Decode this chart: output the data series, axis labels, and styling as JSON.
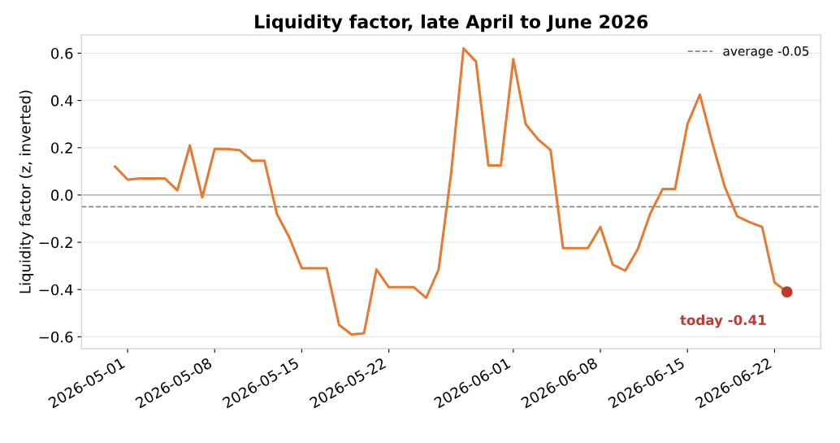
{
  "chart_data": {
    "type": "line",
    "title": "Liquidity factor, late April to June 2026",
    "ylabel": "Liquidity factor (z, inverted)",
    "x": [
      "2026-04-30",
      "2026-05-01",
      "2026-05-02",
      "2026-05-03",
      "2026-05-04",
      "2026-05-05",
      "2026-05-06",
      "2026-05-07",
      "2026-05-08",
      "2026-05-09",
      "2026-05-10",
      "2026-05-11",
      "2026-05-12",
      "2026-05-13",
      "2026-05-14",
      "2026-05-15",
      "2026-05-16",
      "2026-05-17",
      "2026-05-18",
      "2026-05-19",
      "2026-05-20",
      "2026-05-21",
      "2026-05-22",
      "2026-05-23",
      "2026-05-24",
      "2026-05-25",
      "2026-05-26",
      "2026-05-27",
      "2026-05-28",
      "2026-05-29",
      "2026-05-30",
      "2026-05-31",
      "2026-06-01",
      "2026-06-02",
      "2026-06-03",
      "2026-06-04",
      "2026-06-05",
      "2026-06-06",
      "2026-06-07",
      "2026-06-08",
      "2026-06-09",
      "2026-06-10",
      "2026-06-11",
      "2026-06-12",
      "2026-06-13",
      "2026-06-14",
      "2026-06-15",
      "2026-06-16",
      "2026-06-17",
      "2026-06-18",
      "2026-06-19",
      "2026-06-20",
      "2026-06-21",
      "2026-06-22",
      "2026-06-23"
    ],
    "series": [
      {
        "color": "#e87a30",
        "marker": "none",
        "values": [
          0.12,
          0.065,
          0.07,
          0.07,
          0.07,
          0.02,
          0.21,
          -0.01,
          0.195,
          0.195,
          0.19,
          0.145,
          0.145,
          -0.08,
          -0.18,
          -0.31,
          -0.31,
          -0.31,
          -0.55,
          -0.59,
          -0.585,
          -0.315,
          -0.39,
          -0.39,
          -0.39,
          -0.435,
          -0.315,
          0.09,
          0.62,
          0.565,
          0.125,
          0.125,
          0.575,
          0.3,
          0.235,
          0.19,
          -0.225,
          -0.225,
          -0.225,
          -0.135,
          -0.295,
          -0.32,
          -0.23,
          -0.08,
          0.025,
          0.025,
          0.3,
          0.425,
          0.22,
          0.035,
          -0.09,
          -0.115,
          -0.135,
          -0.37,
          -0.41
        ]
      },
      {
        "type": "scatter",
        "marker": "circle",
        "color": "#c0392b",
        "x": [
          "2026-06-23"
        ],
        "values": [
          -0.41
        ]
      }
    ],
    "xlim": [
      "2026-04-27T07:00",
      "2026-06-25T17:00"
    ],
    "xticks": [
      {
        "value": "2026-05-01",
        "label": "2026-05-01"
      },
      {
        "value": "2026-05-08",
        "label": "2026-05-08"
      },
      {
        "value": "2026-05-15",
        "label": "2026-05-15"
      },
      {
        "value": "2026-05-22",
        "label": "2026-05-22"
      },
      {
        "value": "2026-06-01",
        "label": "2026-06-01"
      },
      {
        "value": "2026-06-08",
        "label": "2026-06-08"
      },
      {
        "value": "2026-06-15",
        "label": "2026-06-15"
      },
      {
        "value": "2026-06-22",
        "label": "2026-06-22"
      }
    ],
    "ylim": [
      -0.65,
      0.677
    ],
    "yticks": [
      {
        "value": -0.6,
        "label": "−0.6"
      },
      {
        "value": -0.4,
        "label": "−0.4"
      },
      {
        "value": -0.2,
        "label": "−0.2"
      },
      {
        "value": 0.0,
        "label": "0.0"
      },
      0.2,
      0.4,
      0.6
    ],
    "ref_lines": [
      {
        "axis": "y",
        "value": 0,
        "color": "#aaaaaa",
        "line_style": "solid"
      },
      {
        "axis": "y",
        "value": -0.05,
        "label": "average -0.05",
        "color": "#888888",
        "line_style": "dashed"
      }
    ],
    "annotations": [
      {
        "text": "today -0.41",
        "x": "2026-06-23",
        "y": -0.41
      }
    ],
    "grid": "y",
    "legend": "top right",
    "line_style": "solid"
  }
}
